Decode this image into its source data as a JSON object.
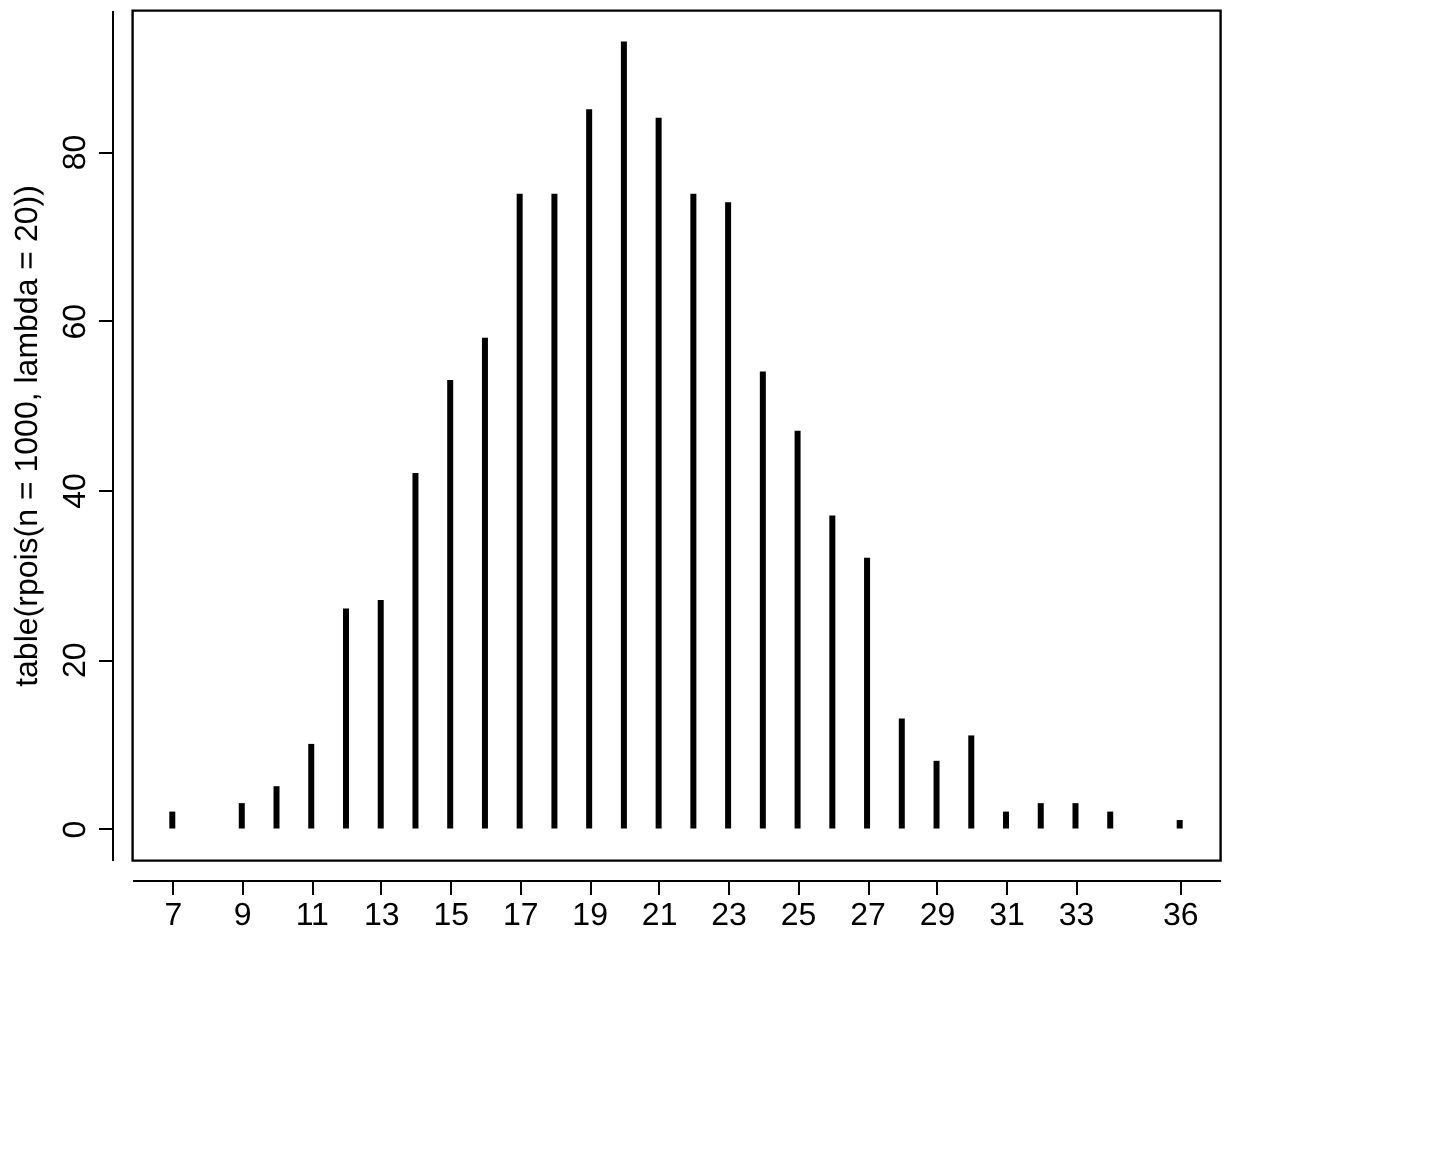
{
  "chart_data": {
    "type": "bar",
    "ylabel": "table(rpois(n = 1000, lambda = 20))",
    "x": [
      7,
      9,
      10,
      11,
      12,
      13,
      14,
      15,
      16,
      17,
      18,
      19,
      20,
      21,
      22,
      23,
      24,
      25,
      26,
      27,
      28,
      29,
      30,
      31,
      32,
      33,
      34,
      36
    ],
    "values": [
      2,
      3,
      5,
      10,
      26,
      27,
      42,
      53,
      58,
      75,
      75,
      85,
      93,
      84,
      75,
      74,
      54,
      47,
      37,
      32,
      13,
      8,
      11,
      2,
      3,
      3,
      2,
      1
    ],
    "color": "#000000",
    "xlim": [
      5.84,
      37.16
    ],
    "xticks": [
      7,
      9,
      11,
      13,
      15,
      17,
      19,
      21,
      23,
      25,
      27,
      29,
      31,
      33,
      36
    ],
    "ylim": [
      -3.72,
      96.72
    ],
    "yticks": [
      0,
      20,
      40,
      60,
      80
    ],
    "grid": false
  }
}
